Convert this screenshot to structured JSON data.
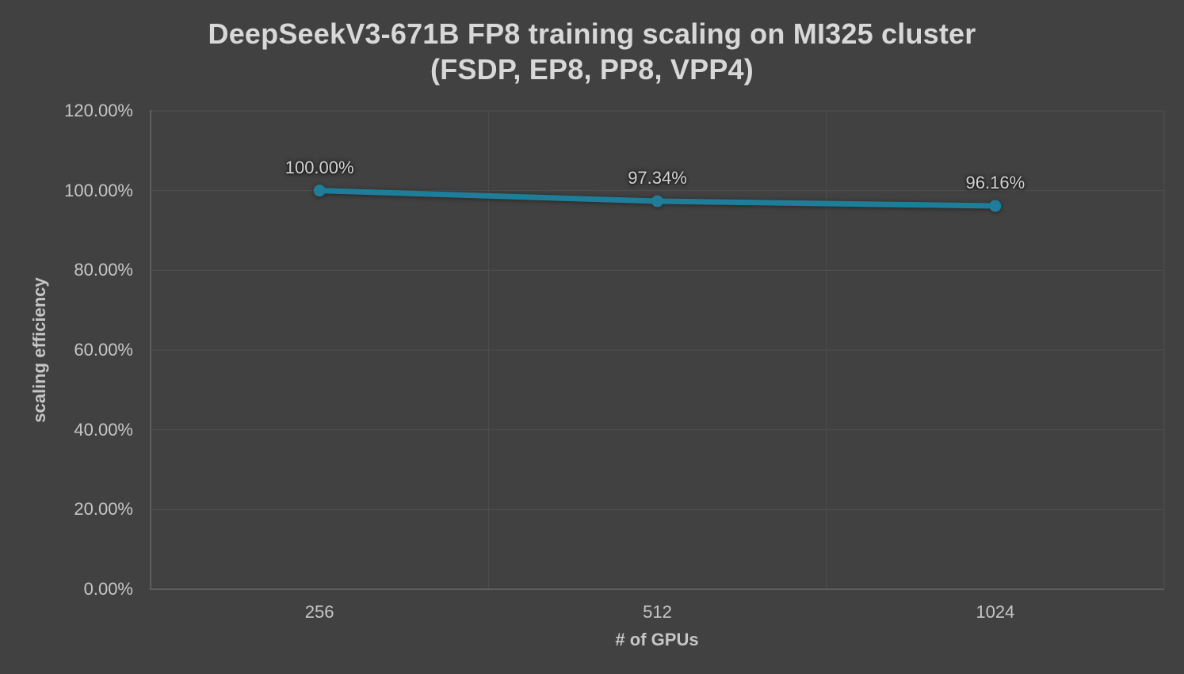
{
  "colors": {
    "background": "#414141",
    "gridline": "#4f4f4f",
    "axis_line": "#5e5e5e",
    "tick_text": "#c6c6c6",
    "title_text": "#d8d8d8",
    "data_label_text": "#d2d2d2",
    "series_color": "#1e7e99"
  },
  "chart_data": {
    "type": "line",
    "title": "DeepSeekV3-671B FP8 training scaling on MI325 cluster (FSDP, EP8, PP8, VPP4)",
    "title_lines": {
      "0": "DeepSeekV3-671B FP8 training scaling on MI325 cluster",
      "1": "(FSDP, EP8, PP8, VPP4)"
    },
    "xlabel": "# of GPUs",
    "ylabel": "scaling efficiency",
    "categories": [
      "256",
      "512",
      "1024"
    ],
    "series": [
      {
        "name": "scaling efficiency",
        "values": [
          100.0,
          97.34,
          96.16
        ],
        "data_labels": [
          "100.00%",
          "97.34%",
          "96.16%"
        ],
        "color": "#1e7e99",
        "marker": "circle"
      }
    ],
    "y_ticks": [
      {
        "label": "120.00%",
        "value": 120
      },
      {
        "label": "100.00%",
        "value": 100
      },
      {
        "label": "80.00%",
        "value": 80
      },
      {
        "label": "60.00%",
        "value": 60
      },
      {
        "label": "40.00%",
        "value": 40
      },
      {
        "label": "20.00%",
        "value": 20
      },
      {
        "label": "0.00%",
        "value": 0
      }
    ],
    "ylim": [
      0,
      120
    ],
    "grid": true,
    "legend": "none"
  }
}
